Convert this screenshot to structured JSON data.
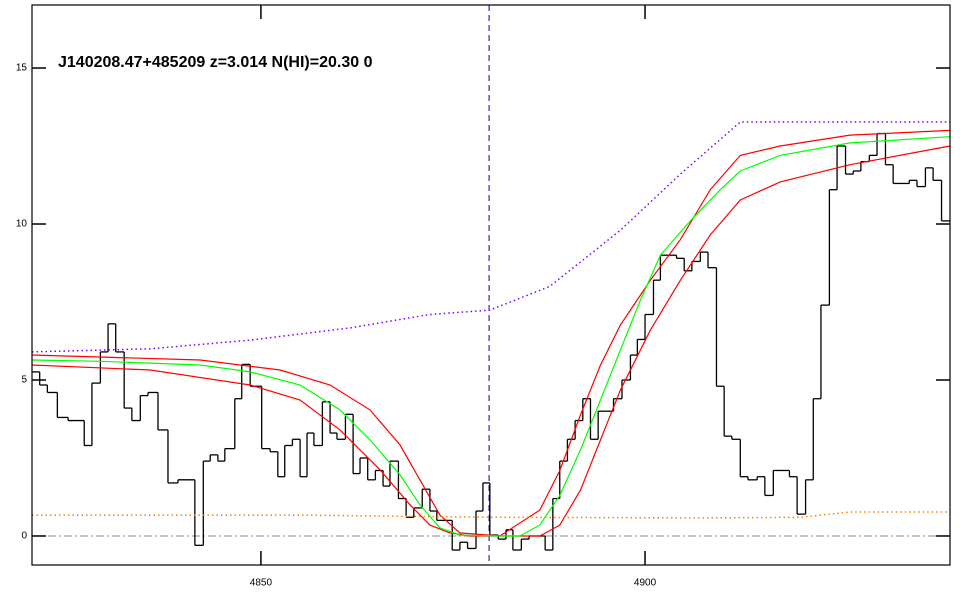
{
  "chart_data": {
    "type": "line",
    "annotation": "J140208.47+485209 z=3.014 N(HI)=20.30 0",
    "xlim": [
      4820.2,
      4939.7
    ],
    "ylim": [
      -0.93,
      17.02
    ],
    "xticks": [
      4850,
      4900
    ],
    "yticks": [
      0,
      5,
      10,
      15
    ],
    "vline": 4879.7,
    "hline": 0,
    "series": [
      {
        "style": "step",
        "color": "#000000",
        "x": [
          4820.2,
          4821.2,
          4822.2,
          4823.5,
          4824.9,
          4827.0,
          4828.0,
          4829.1,
          4830.1,
          4831.1,
          4832.2,
          4833.2,
          4834.3,
          4835.3,
          4836.6,
          4837.9,
          4839.2,
          4841.4,
          4842.5,
          4843.4,
          4844.4,
          4845.3,
          4846.6,
          4847.5,
          4848.6,
          4850.1,
          4851.2,
          4852.2,
          4853.1,
          4854.1,
          4855.1,
          4856.0,
          4856.9,
          4858.0,
          4859.0,
          4859.9,
          4861.0,
          4862.0,
          4862.9,
          4863.9,
          4864.9,
          4865.9,
          4866.8,
          4867.9,
          4868.9,
          4869.9,
          4871.0,
          4872.0,
          4872.9,
          4874.0,
          4874.9,
          4875.9,
          4876.9,
          4878.0,
          4878.9,
          4879.8,
          4880.9,
          4881.9,
          4882.8,
          4883.9,
          4884.9,
          4887.0,
          4888.0,
          4888.9,
          4889.9,
          4890.9,
          4891.9,
          4892.9,
          4893.9,
          4894.9,
          4895.9,
          4897.0,
          4898.1,
          4899.0,
          4900.0,
          4901.1,
          4902.0,
          4903.0,
          4904.1,
          4905.1,
          4906.1,
          4907.2,
          4908.2,
          4909.3,
          4910.3,
          4911.3,
          4912.4,
          4913.4,
          4914.6,
          4915.6,
          4916.7,
          4917.7,
          4918.8,
          4919.8,
          4920.9,
          4921.9,
          4922.9,
          4924.0,
          4925.0,
          4926.1,
          4927.1,
          4928.1,
          4929.2,
          4930.2,
          4931.3,
          4932.3,
          4933.4,
          4934.4,
          4935.4,
          4936.5,
          4937.5,
          4938.6
        ],
        "values": [
          5.26,
          4.84,
          4.6,
          3.8,
          3.7,
          2.9,
          4.9,
          5.9,
          6.8,
          5.9,
          4.1,
          3.7,
          4.5,
          4.6,
          3.4,
          1.7,
          1.8,
          -0.3,
          2.4,
          2.6,
          2.4,
          2.8,
          4.4,
          5.5,
          4.8,
          2.8,
          2.7,
          1.9,
          2.9,
          3.1,
          1.9,
          3.3,
          2.9,
          4.3,
          3.3,
          3.1,
          3.9,
          2.0,
          2.5,
          1.8,
          2.1,
          1.6,
          2.4,
          1.2,
          0.6,
          0.9,
          1.5,
          0.8,
          0.5,
          0.5,
          -0.45,
          -0.2,
          -0.4,
          0.8,
          1.7,
          0.03,
          -0.1,
          0.2,
          -0.45,
          -0.1,
          0.0,
          -0.45,
          1.2,
          2.4,
          3.1,
          3.7,
          4.4,
          3.1,
          4.0,
          4.0,
          4.4,
          5.0,
          5.8,
          6.3,
          7.1,
          8.2,
          9.0,
          9.0,
          8.9,
          8.5,
          8.8,
          9.1,
          8.6,
          4.8,
          3.2,
          3.1,
          1.9,
          1.8,
          1.9,
          1.3,
          2.1,
          2.1,
          1.9,
          0.7,
          1.8,
          4.4,
          7.4,
          11.1,
          12.5,
          11.6,
          11.7,
          12.0,
          12.2,
          12.9,
          11.9,
          11.3,
          11.3,
          11.4,
          11.2,
          11.8,
          11.4,
          10.1
        ]
      },
      {
        "style": "solid",
        "color": "#ff0000",
        "x": [
          4820.2,
          4842.1,
          4852.5,
          4859.0,
          4864.2,
          4868.1,
          4870.7,
          4873.3,
          4875.9,
          4881.1,
          4886.3,
          4888.9,
          4891.6,
          4894.2,
          4896.8,
          4900.7,
          4904.6,
          4908.5,
          4912.4,
          4917.6,
          4926.7,
          4939.7
        ],
        "values": [
          5.8,
          5.64,
          5.32,
          4.84,
          4.04,
          2.92,
          1.8,
          0.67,
          0.1,
          0,
          0.83,
          2.1,
          3.88,
          5.48,
          6.76,
          8.2,
          9.5,
          11.1,
          12.2,
          12.5,
          12.85,
          13.0
        ]
      },
      {
        "style": "solid",
        "color": "#ff0000",
        "x": [
          4820.2,
          4835.6,
          4848.6,
          4855.1,
          4860.3,
          4865.5,
          4869.4,
          4872.0,
          4874.6,
          4877.2,
          4886.3,
          4888.9,
          4891.6,
          4894.2,
          4896.8,
          4900.7,
          4904.6,
          4908.5,
          4912.4,
          4917.6,
          4926.7,
          4939.7
        ],
        "values": [
          5.48,
          5.32,
          4.84,
          4.36,
          3.4,
          2.12,
          1.0,
          0.35,
          0.1,
          0,
          0,
          0.35,
          1.47,
          3.08,
          4.68,
          6.6,
          8.2,
          9.65,
          10.77,
          11.35,
          11.9,
          12.5
        ]
      },
      {
        "style": "solid",
        "color": "#00ff00",
        "x": [
          4820.2,
          4829.1,
          4842.1,
          4848.6,
          4855.1,
          4860.3,
          4864.2,
          4868.1,
          4870.7,
          4873.3,
          4875.9,
          4881.1,
          4883.7,
          4886.3,
          4888.9,
          4891.6,
          4894.2,
          4896.8,
          4899.4,
          4902.0,
          4905.9,
          4909.8,
          4912.4,
          4917.6,
          4926.7,
          4939.7
        ],
        "values": [
          5.64,
          5.6,
          5.48,
          5.26,
          4.84,
          4.04,
          3.08,
          1.96,
          1.0,
          0.26,
          0.03,
          0,
          0,
          0.35,
          1.3,
          2.76,
          4.36,
          5.96,
          7.56,
          9.0,
          10.1,
          11.1,
          11.7,
          12.2,
          12.6,
          12.8
        ]
      },
      {
        "style": "dotted",
        "color": "#8000ff",
        "x": [
          4820.2,
          4835.6,
          4848.6,
          4861.6,
          4872.0,
          4879.8,
          4887.6,
          4896.8,
          4904.6,
          4912.4,
          4939.7
        ],
        "values": [
          5.9,
          6.0,
          6.28,
          6.67,
          7.1,
          7.24,
          8.0,
          9.8,
          11.6,
          13.27,
          13.27
        ]
      },
      {
        "style": "dotted",
        "color": "#ff8000",
        "x": [
          4820.2,
          4855.1,
          4881.1,
          4907.2,
          4920.2,
          4926.7,
          4939.7
        ],
        "values": [
          0.67,
          0.67,
          0.6,
          0.58,
          0.6,
          0.77,
          0.77
        ]
      }
    ]
  }
}
